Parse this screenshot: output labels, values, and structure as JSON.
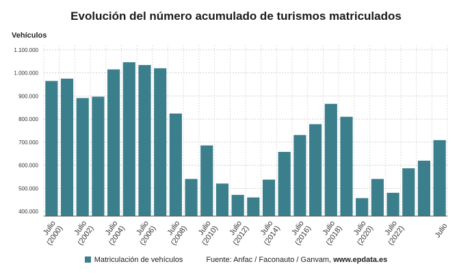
{
  "chart_data": {
    "type": "bar",
    "title": "Evolución del número acumulado de turismos matriculados",
    "ylabel": "Vehículos",
    "ylim": [
      380000,
      1120000
    ],
    "yticks": [
      400000,
      500000,
      600000,
      700000,
      800000,
      900000,
      1000000,
      1100000
    ],
    "ytick_labels": [
      "400.000",
      "500.000",
      "600.000",
      "700.000",
      "800.000",
      "900.000",
      "1.000.000",
      "1.100.000"
    ],
    "grid": true,
    "legend_placement": "bottom",
    "bar_color": "#3c7f8c",
    "categories": [
      "Julio (2000)",
      "",
      "Julio (2002)",
      "",
      "Julio (2004)",
      "",
      "Julio (2006)",
      "",
      "Julio (2008)",
      "",
      "Julio (2010)",
      "",
      "Julio (2012)",
      "",
      "Julio (2014)",
      "",
      "Julio (2016)",
      "",
      "Julio (2018)",
      "",
      "Julio (2020)",
      "",
      "Julio (2022)",
      "",
      "",
      "Julio"
    ],
    "series": [
      {
        "name": "Matriculación de vehículos",
        "values": [
          965000,
          975000,
          891000,
          897000,
          1015000,
          1046000,
          1034000,
          1020000,
          824000,
          541000,
          686000,
          521000,
          472000,
          461000,
          538000,
          658000,
          731000,
          778000,
          866000,
          810000,
          458000,
          541000,
          481000,
          587000,
          620000,
          709000
        ]
      }
    ]
  },
  "legend": {
    "series_label": "Matriculación de vehículos",
    "source_prefix": "Fuente: Anfac / Faconauto / Ganvam,",
    "source_site": "www.epdata.es"
  }
}
